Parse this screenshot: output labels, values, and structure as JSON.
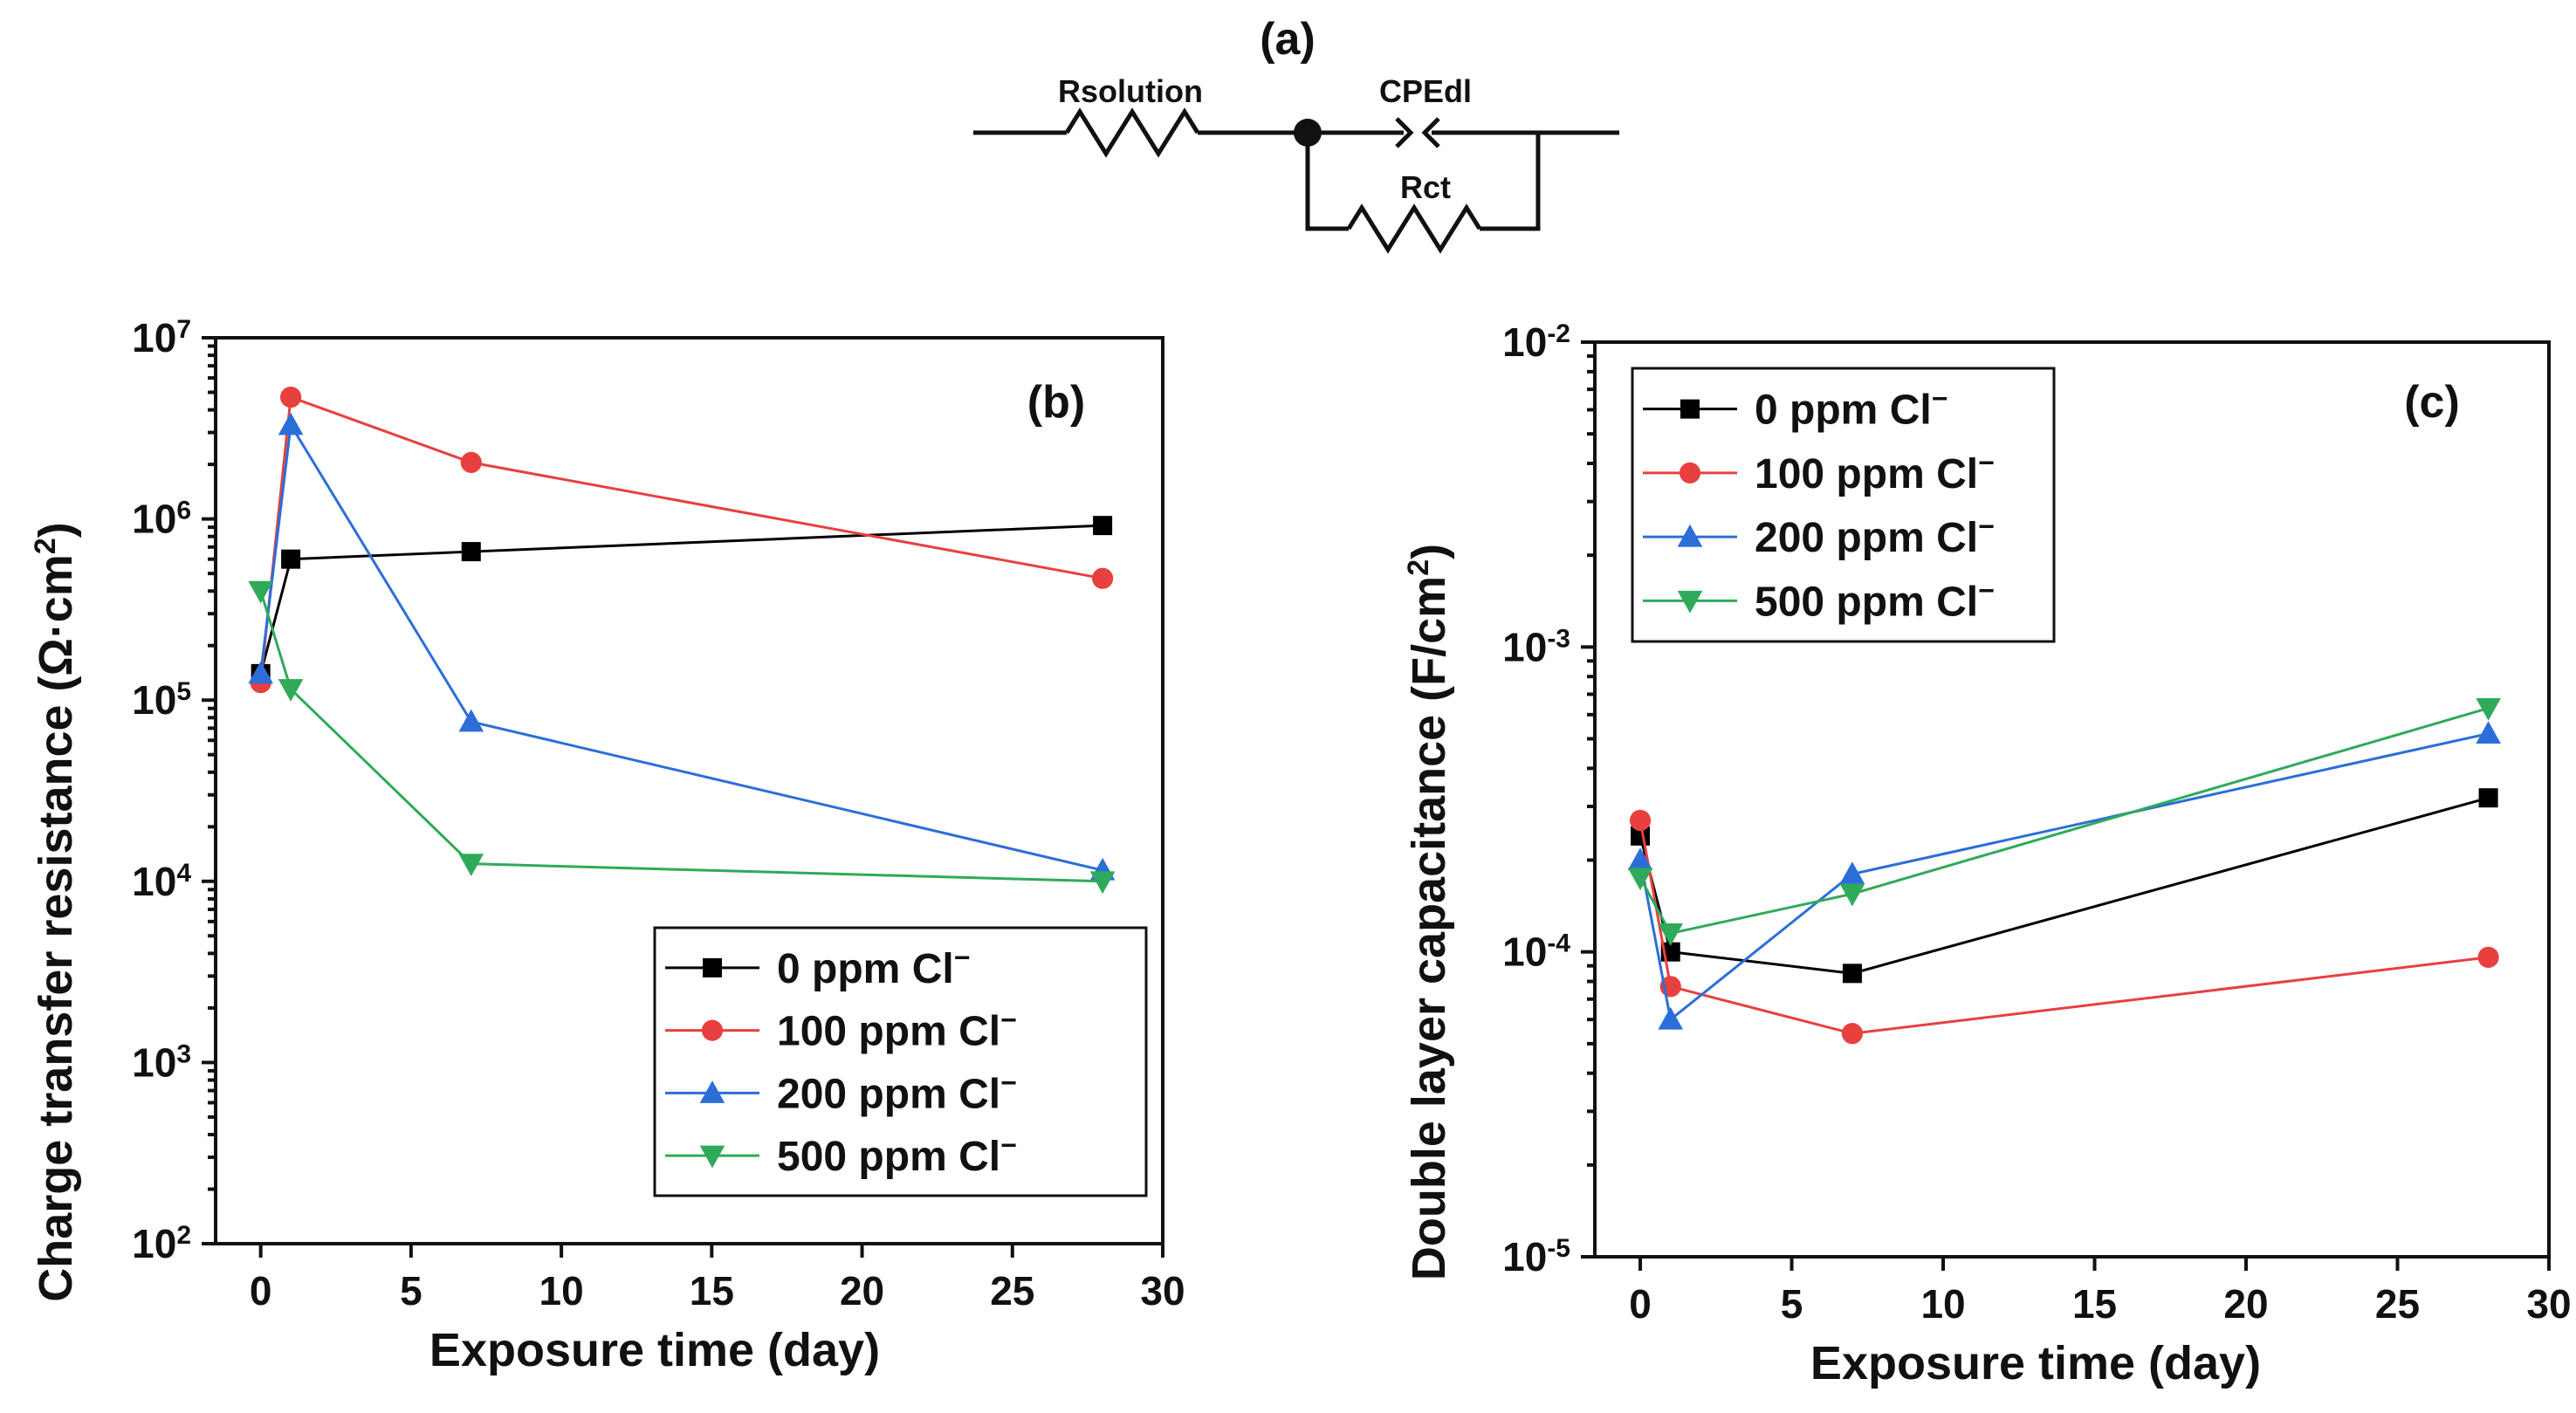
{
  "circuit": {
    "label": "(a)",
    "r_solution": "Rsolution",
    "cpe": "CPEdl",
    "r_ct": "Rct"
  },
  "chart_data": [
    {
      "type": "line",
      "panel": "(b)",
      "yscale": "log",
      "xlabel": "Exposure time (day)",
      "ylabel_main": "Charge transfer resistance (Ω·cm",
      "ylabel_sup": "2",
      "ylabel_end": ")",
      "xlim": [
        -1.5,
        30
      ],
      "ylim": [
        100,
        10000000
      ],
      "xticks": [
        0,
        5,
        10,
        15,
        20,
        25,
        30
      ],
      "yticks": [
        {
          "base": "10",
          "exp": "2",
          "value": 100
        },
        {
          "base": "10",
          "exp": "3",
          "value": 1000
        },
        {
          "base": "10",
          "exp": "4",
          "value": 10000
        },
        {
          "base": "10",
          "exp": "5",
          "value": 100000
        },
        {
          "base": "10",
          "exp": "6",
          "value": 1000000
        },
        {
          "base": "10",
          "exp": "7",
          "value": 10000000
        }
      ],
      "legend_position": "bottom-right",
      "x": [
        0,
        1,
        7,
        28
      ],
      "series": [
        {
          "name": "0 ppm Cl",
          "sup": "−",
          "color": "#000000",
          "marker": "square",
          "values": [
            140000,
            600000,
            660000,
            920000
          ]
        },
        {
          "name": "100 ppm Cl",
          "sup": "−",
          "color": "#e8403f",
          "marker": "circle",
          "values": [
            125000,
            4700000,
            2050000,
            470000
          ]
        },
        {
          "name": "200 ppm Cl",
          "sup": "−",
          "color": "#2b6ed8",
          "marker": "triangle-up",
          "values": [
            140000,
            3300000,
            76000,
            11500
          ]
        },
        {
          "name": "500 ppm Cl",
          "sup": "−",
          "color": "#2eaa5a",
          "marker": "triangle-down",
          "values": [
            400000,
            115000,
            12500,
            10000
          ]
        }
      ]
    },
    {
      "type": "line",
      "panel": "(c)",
      "yscale": "log",
      "xlabel": "Exposure time (day)",
      "ylabel_main": "Double layer capacitance (F/cm",
      "ylabel_sup": "2",
      "ylabel_end": ")",
      "xlim": [
        -1.5,
        30
      ],
      "ylim": [
        1e-05,
        0.01
      ],
      "xticks": [
        0,
        5,
        10,
        15,
        20,
        25,
        30
      ],
      "yticks": [
        {
          "base": "10",
          "exp": "-5",
          "value": 1e-05
        },
        {
          "base": "10",
          "exp": "-4",
          "value": 0.0001
        },
        {
          "base": "10",
          "exp": "-3",
          "value": 0.001
        },
        {
          "base": "10",
          "exp": "-2",
          "value": 0.01
        }
      ],
      "legend_position": "top-left",
      "x": [
        0,
        1,
        7,
        28
      ],
      "series": [
        {
          "name": "0 ppm Cl",
          "sup": "−",
          "color": "#000000",
          "marker": "square",
          "values": [
            0.00024,
            0.0001,
            8.5e-05,
            0.00032
          ]
        },
        {
          "name": "100 ppm Cl",
          "sup": "−",
          "color": "#e8403f",
          "marker": "circle",
          "values": [
            0.00027,
            7.7e-05,
            5.4e-05,
            9.6e-05
          ]
        },
        {
          "name": "200 ppm Cl",
          "sup": "−",
          "color": "#2b6ed8",
          "marker": "triangle-up",
          "values": [
            0.0002,
            6e-05,
            0.00018,
            0.00052
          ]
        },
        {
          "name": "500 ppm Cl",
          "sup": "−",
          "color": "#2eaa5a",
          "marker": "triangle-down",
          "values": [
            0.000175,
            0.000115,
            0.000155,
            0.00063
          ]
        }
      ]
    }
  ]
}
